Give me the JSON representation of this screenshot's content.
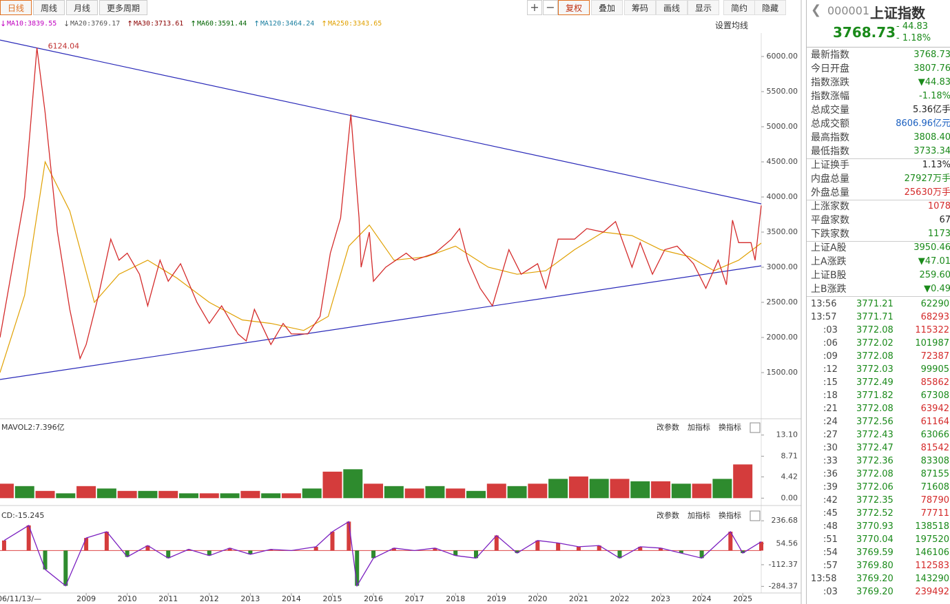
{
  "toolbar": {
    "tabs": [
      "日线",
      "周线",
      "月线",
      "更多周期"
    ],
    "buttons": [
      "复权",
      "叠加",
      "筹码",
      "画线",
      "显示",
      "简约",
      "隐藏"
    ],
    "ma_items": [
      {
        "label": "MA10:3839.55",
        "arrow": "↓",
        "color": "#c000c0"
      },
      {
        "label": "MA20:3769.17",
        "arrow": "↓",
        "color": "#555555"
      },
      {
        "label": "MA30:3713.61",
        "arrow": "↑",
        "color": "#8b0000"
      },
      {
        "label": "MA60:3591.44",
        "arrow": "↑",
        "color": "#006400"
      },
      {
        "label": "MA120:3464.24",
        "arrow": "↑",
        "color": "#1a7fa0"
      },
      {
        "label": "MA250:3343.65",
        "arrow": "↑",
        "color": "#e0a000"
      }
    ],
    "ma_settings": "设置均线"
  },
  "chart_data": [
    {
      "type": "line",
      "annotation": "6124.04",
      "xlim": [
        2006.9,
        2025.45
      ],
      "ylim": [
        853,
        6314
      ],
      "yticks": [
        {
          "value": 1500,
          "label": "1500.00"
        },
        {
          "value": 2000,
          "label": "2000.00"
        },
        {
          "value": 2500,
          "label": "2500.00"
        },
        {
          "value": 3000,
          "label": "3000.00"
        },
        {
          "value": 3500,
          "label": "3500.00"
        },
        {
          "value": 4000,
          "label": "4000.00"
        },
        {
          "value": 4500,
          "label": "4500.00"
        },
        {
          "value": 5000,
          "label": "5000.00"
        },
        {
          "value": 5500,
          "label": "5500.00"
        },
        {
          "value": 6000,
          "label": "6000.00"
        }
      ],
      "color": "#d42a2a",
      "x": [
        2006.9,
        2007.2,
        2007.5,
        2007.8,
        2008.0,
        2008.3,
        2008.6,
        2008.85,
        2009.0,
        2009.3,
        2009.6,
        2009.8,
        2010.0,
        2010.3,
        2010.5,
        2010.8,
        2011.0,
        2011.3,
        2011.7,
        2012.0,
        2012.3,
        2012.7,
        2012.9,
        2013.1,
        2013.5,
        2013.8,
        2014.0,
        2014.4,
        2014.7,
        2014.95,
        2015.2,
        2015.45,
        2015.65,
        2015.7,
        2015.9,
        2016.0,
        2016.3,
        2016.8,
        2017.0,
        2017.5,
        2017.9,
        2018.1,
        2018.3,
        2018.6,
        2018.9,
        2019.3,
        2019.6,
        2020.0,
        2020.2,
        2020.5,
        2020.9,
        2021.2,
        2021.6,
        2021.9,
        2022.3,
        2022.5,
        2022.8,
        2023.1,
        2023.4,
        2023.8,
        2024.1,
        2024.4,
        2024.6,
        2024.75,
        2024.9,
        2025.2,
        2025.3,
        2025.45
      ],
      "values": [
        2000,
        3000,
        4000,
        6124,
        5200,
        3500,
        2400,
        1700,
        1900,
        2600,
        3400,
        3100,
        3200,
        2900,
        2450,
        3100,
        2800,
        3050,
        2500,
        2200,
        2450,
        2050,
        1950,
        2400,
        1900,
        2200,
        2050,
        2050,
        2300,
        3200,
        3700,
        5178,
        3700,
        3000,
        3500,
        2800,
        3000,
        3200,
        3100,
        3200,
        3400,
        3550,
        3100,
        2700,
        2450,
        3250,
        2900,
        3050,
        2700,
        3400,
        3400,
        3550,
        3500,
        3650,
        3000,
        3350,
        2900,
        3250,
        3300,
        3050,
        2700,
        3100,
        2750,
        3670,
        3350,
        3350,
        3100,
        3880
      ],
      "ma250": {
        "color": "#e0a000",
        "x": [
          2006.9,
          2007.5,
          2008.0,
          2008.6,
          2009.2,
          2009.8,
          2010.5,
          2011.2,
          2012.0,
          2012.8,
          2013.5,
          2014.3,
          2014.9,
          2015.4,
          2015.9,
          2016.5,
          2017.3,
          2018.0,
          2018.8,
          2019.5,
          2020.2,
          2020.9,
          2021.6,
          2022.3,
          2023.0,
          2023.7,
          2024.3,
          2024.9,
          2025.45
        ],
        "values": [
          1500,
          2600,
          4500,
          3800,
          2500,
          2900,
          3100,
          2850,
          2500,
          2250,
          2200,
          2100,
          2300,
          3300,
          3600,
          3100,
          3150,
          3300,
          3000,
          2900,
          2950,
          3250,
          3500,
          3450,
          3250,
          3150,
          2950,
          3100,
          3343
        ]
      },
      "trend_lines": [
        {
          "color": "#2828b8",
          "x": [
            2006.9,
            2025.45
          ],
          "values": [
            6235,
            3902
          ]
        },
        {
          "color": "#2828b8",
          "x": [
            2006.9,
            2025.45
          ],
          "values": [
            1402,
            3020
          ]
        }
      ]
    },
    {
      "type": "bar",
      "label": "MAVOL2:7.396亿",
      "buttons": [
        "改参数",
        "加指标",
        "换指标"
      ],
      "xlim": [
        2006.9,
        2025.45
      ],
      "ylim": [
        -1.1,
        16.2
      ],
      "yticks": [
        {
          "value": 0,
          "label": "0.00"
        },
        4.42,
        8.71,
        {
          "value": 13.1,
          "label": "13.10"
        }
      ],
      "x": [
        2007,
        2007.5,
        2008,
        2008.5,
        2009,
        2009.5,
        2010,
        2010.5,
        2011,
        2011.5,
        2012,
        2012.5,
        2013,
        2013.5,
        2014,
        2014.5,
        2015,
        2015.5,
        2016,
        2016.5,
        2017,
        2017.5,
        2018,
        2018.5,
        2019,
        2019.5,
        2020,
        2020.5,
        2021,
        2021.5,
        2022,
        2022.5,
        2023,
        2023.5,
        2024,
        2024.5,
        2025
      ],
      "values": [
        3,
        2.5,
        1.5,
        1,
        2.5,
        2,
        1.5,
        1.5,
        1.5,
        1,
        1,
        1,
        1.5,
        1,
        1,
        2,
        5.5,
        6,
        3,
        2.5,
        2,
        2.5,
        2,
        1.5,
        3,
        2.5,
        3,
        4,
        4.5,
        4,
        4,
        3.5,
        3.5,
        3,
        3,
        4,
        7
      ],
      "colors": [
        "#d43c3c",
        "#2e8b2e",
        "#d43c3c",
        "#2e8b2e",
        "#d43c3c",
        "#2e8b2e",
        "#d43c3c",
        "#2e8b2e",
        "#d43c3c",
        "#2e8b2e",
        "#d43c3c",
        "#2e8b2e",
        "#d43c3c",
        "#2e8b2e",
        "#d43c3c",
        "#2e8b2e",
        "#d43c3c",
        "#2e8b2e",
        "#d43c3c",
        "#2e8b2e",
        "#d43c3c",
        "#2e8b2e",
        "#d43c3c",
        "#2e8b2e",
        "#d43c3c",
        "#2e8b2e",
        "#d43c3c",
        "#2e8b2e",
        "#d43c3c",
        "#2e8b2e",
        "#d43c3c",
        "#2e8b2e",
        "#d43c3c",
        "#2e8b2e",
        "#d43c3c",
        "#2e8b2e",
        "#d43c3c"
      ]
    },
    {
      "type": "line",
      "label": "CD:-15.245",
      "buttons": [
        "改参数",
        "加指标",
        "换指标"
      ],
      "xlim": [
        2006.9,
        2025.45
      ],
      "ylim": [
        -337,
        336
      ],
      "color": "#7a1fc0",
      "yticks": [
        -284.37,
        -112.37,
        54.56,
        236.68
      ],
      "xticks": [
        2009,
        2010,
        2011,
        2012,
        2013,
        2014,
        2015,
        2016,
        2017,
        2018,
        2019,
        2020,
        2021,
        2022,
        2023,
        2024,
        2025
      ],
      "date_label": "06/11/13/—",
      "x": [
        2007,
        2007.6,
        2008,
        2008.5,
        2009,
        2009.5,
        2010,
        2010.5,
        2011,
        2011.5,
        2012,
        2012.5,
        2013,
        2013.5,
        2014,
        2014.6,
        2015,
        2015.4,
        2015.6,
        2016,
        2016.5,
        2017,
        2017.5,
        2018,
        2018.5,
        2019,
        2019.5,
        2020,
        2020.5,
        2021,
        2021.5,
        2022,
        2022.5,
        2023,
        2023.5,
        2024,
        2024.7,
        2025,
        2025.45
      ],
      "values": [
        80,
        200,
        -150,
        -280,
        100,
        150,
        -50,
        40,
        -60,
        10,
        -40,
        20,
        -30,
        10,
        0,
        30,
        150,
        230,
        -280,
        -60,
        20,
        0,
        20,
        -40,
        -60,
        120,
        -20,
        80,
        60,
        30,
        40,
        -60,
        30,
        20,
        -20,
        -60,
        150,
        -20,
        70
      ]
    }
  ],
  "sidebar": {
    "code": "000001",
    "name": "上证指数",
    "price": "3768.73",
    "change": "- 44.83",
    "pct": "- 1.18%",
    "stats": [
      [
        "最新指数",
        "3768.73",
        "#1a8a1a"
      ],
      [
        "今日开盘",
        "3807.76",
        "#1a8a1a"
      ],
      [
        "指数涨跌",
        "▼44.83",
        "#1a8a1a"
      ],
      [
        "指数涨幅",
        "-1.18%",
        "#1a8a1a"
      ],
      [
        "总成交量",
        "5.36亿手",
        "#222"
      ],
      [
        "总成交额",
        "8606.96亿元",
        "#1a5fc0"
      ],
      [
        "最高指数",
        "3808.40",
        "#1a8a1a"
      ],
      [
        "最低指数",
        "3733.34",
        "#1a8a1a"
      ],
      [
        "上证换手",
        "1.13%",
        "#222"
      ],
      [
        "内盘总量",
        "27927万手",
        "#1a8a1a"
      ],
      [
        "外盘总量",
        "25630万手",
        "#d42a2a"
      ],
      [
        "上涨家数",
        "1078",
        "#d42a2a"
      ],
      [
        "平盘家数",
        "67",
        "#222"
      ],
      [
        "下跌家数",
        "1173",
        "#1a8a1a"
      ],
      [
        "上证A股",
        "3950.46",
        "#1a8a1a"
      ],
      [
        "上A涨跌",
        "▼47.01",
        "#1a8a1a"
      ],
      [
        "上证B股",
        "259.60",
        "#1a8a1a"
      ],
      [
        "上B涨跌",
        "▼0.49",
        "#1a8a1a"
      ]
    ],
    "ticks": [
      [
        "13:56",
        "3771.21",
        "62290",
        "#1a8a1a"
      ],
      [
        "13:57",
        "3771.71",
        "68293",
        "#d42a2a"
      ],
      [
        ":03",
        "3772.08",
        "115322",
        "#d42a2a"
      ],
      [
        ":06",
        "3772.02",
        "101987",
        "#1a8a1a"
      ],
      [
        ":09",
        "3772.08",
        "72387",
        "#d42a2a"
      ],
      [
        ":12",
        "3772.03",
        "99905",
        "#1a8a1a"
      ],
      [
        ":15",
        "3772.49",
        "85862",
        "#d42a2a"
      ],
      [
        ":18",
        "3771.82",
        "67308",
        "#1a8a1a"
      ],
      [
        ":21",
        "3772.08",
        "63942",
        "#d42a2a"
      ],
      [
        ":24",
        "3772.56",
        "61164",
        "#d42a2a"
      ],
      [
        ":27",
        "3772.43",
        "63066",
        "#1a8a1a"
      ],
      [
        ":30",
        "3772.47",
        "81542",
        "#d42a2a"
      ],
      [
        ":33",
        "3772.36",
        "83308",
        "#1a8a1a"
      ],
      [
        ":36",
        "3772.08",
        "87155",
        "#1a8a1a"
      ],
      [
        ":39",
        "3772.06",
        "71608",
        "#1a8a1a"
      ],
      [
        ":42",
        "3772.35",
        "78790",
        "#d42a2a"
      ],
      [
        ":45",
        "3772.52",
        "77711",
        "#d42a2a"
      ],
      [
        ":48",
        "3770.93",
        "138518",
        "#1a8a1a"
      ],
      [
        ":51",
        "3770.04",
        "197520",
        "#1a8a1a"
      ],
      [
        ":54",
        "3769.59",
        "146106",
        "#1a8a1a"
      ],
      [
        ":57",
        "3769.80",
        "112583",
        "#d42a2a"
      ],
      [
        "13:58",
        "3769.20",
        "143290",
        "#1a8a1a"
      ],
      [
        ":03",
        "3769.20",
        "239492",
        "#d42a2a"
      ]
    ]
  }
}
